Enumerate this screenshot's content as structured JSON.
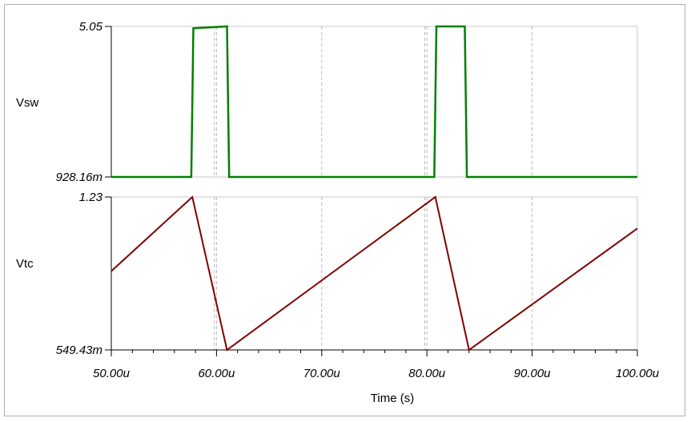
{
  "chart_data": [
    {
      "type": "line",
      "panel": "top",
      "ylabel": "Vsw",
      "ylabel_color": "#000000",
      "line_color": "#008000",
      "ylim": [
        0.92816,
        5.05
      ],
      "ytick_labels": [
        "5.05",
        "928.16m"
      ],
      "xlim": [
        50,
        100
      ],
      "grid": "vertical dashed at major x ticks",
      "series": [
        {
          "x": [
            50,
            57.6,
            57.8,
            60.9,
            61.0,
            61.2,
            80.7,
            80.9,
            83.6,
            83.8,
            100
          ],
          "y": [
            0.92816,
            0.92816,
            5.0,
            5.05,
            5.05,
            0.92816,
            0.92816,
            5.05,
            5.05,
            0.92816,
            0.92816
          ]
        }
      ]
    },
    {
      "type": "line",
      "panel": "bottom",
      "ylabel": "Vtc",
      "ylabel_color": "#8b1a1a",
      "line_color": "#800000",
      "ylim": [
        0.54943,
        1.23
      ],
      "ytick_labels": [
        "1.23",
        "549.43m"
      ],
      "xlim": [
        50,
        100
      ],
      "xlabel": "Time (s)",
      "xtick_values": [
        50,
        60,
        70,
        80,
        90,
        100
      ],
      "xtick_labels": [
        "50.00u",
        "60.00u",
        "70.00u",
        "80.00u",
        "90.00u",
        "100.00u"
      ],
      "grid": "vertical dashed at major x ticks",
      "series": [
        {
          "x": [
            50,
            57.7,
            61.0,
            80.8,
            84.0,
            100
          ],
          "y": [
            0.9,
            1.23,
            0.54943,
            1.23,
            0.54943,
            1.09
          ]
        }
      ]
    }
  ]
}
